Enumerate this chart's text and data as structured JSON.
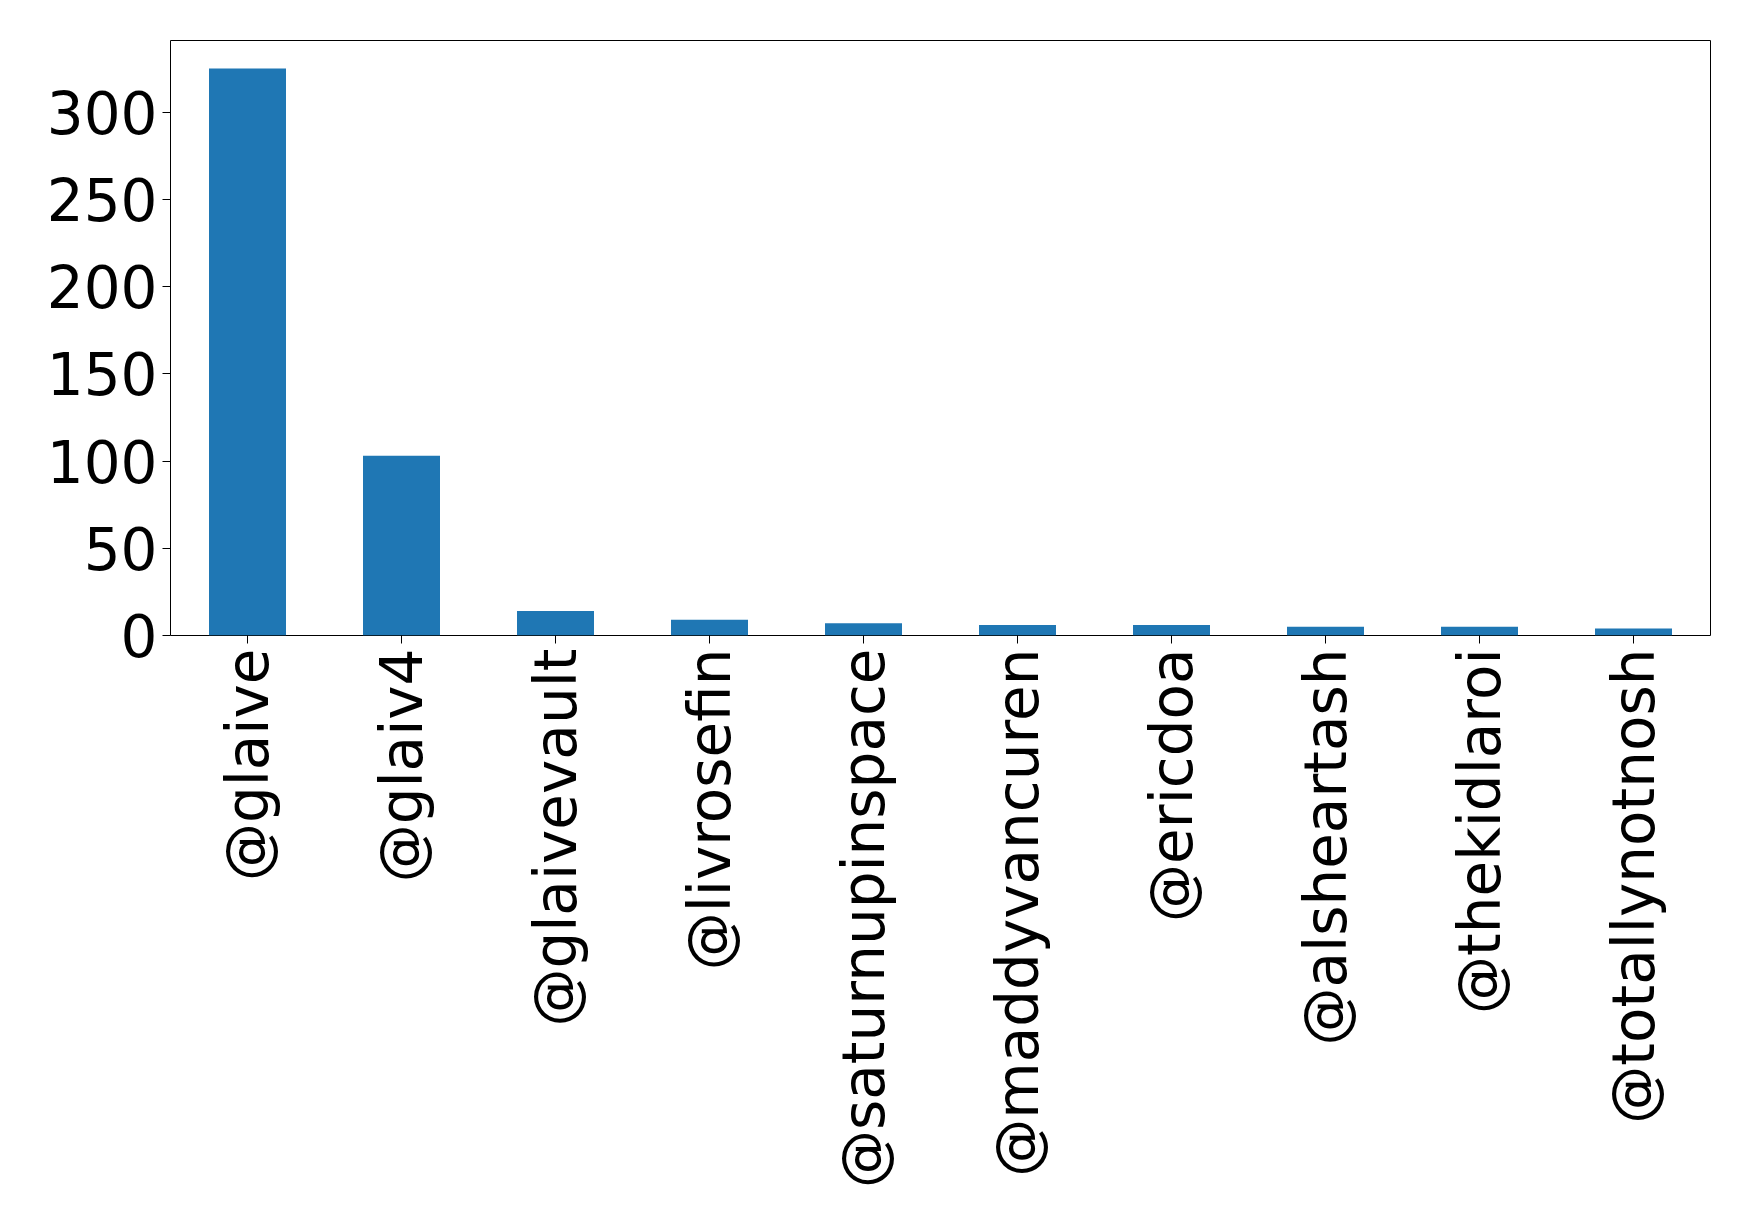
{
  "chart_data": {
    "type": "bar",
    "categories": [
      "@glaive",
      "@glaiv4",
      "@glaivevault",
      "@livrosefin",
      "@saturnupinspace",
      "@maddyvancuren",
      "@ericdoa",
      "@alsheartash",
      "@thekidlaroi",
      "@totallynotnosh"
    ],
    "values": [
      325,
      103,
      14,
      9,
      7,
      6,
      6,
      5,
      5,
      4
    ],
    "color": "#1f77b4",
    "ylim": [
      0,
      341
    ],
    "yticks": [
      0,
      50,
      100,
      150,
      200,
      250,
      300
    ],
    "grid": false
  }
}
